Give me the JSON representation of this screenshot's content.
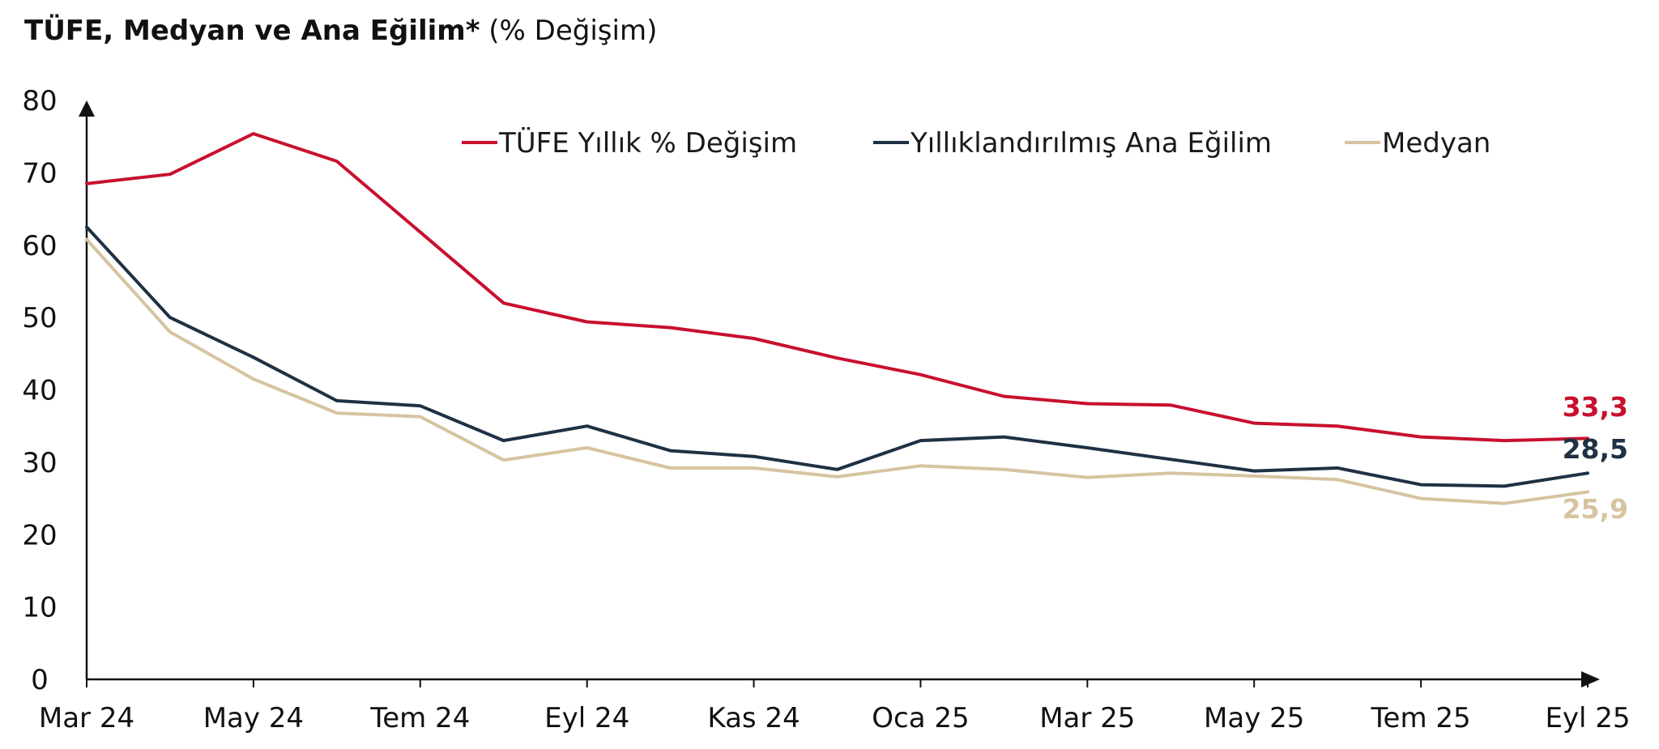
{
  "title": {
    "bold": "TÜFE, Medyan ve Ana Eğilim*",
    "sub": "(% Değişim)"
  },
  "colors": {
    "tufe": "#c8102e",
    "ana": "#1f3144",
    "medyan": "#d6c4a0",
    "axis": "#111111"
  },
  "chart_data": {
    "type": "line",
    "title": "TÜFE, Medyan ve Ana Eğilim* (% Değişim)",
    "xlabel": "",
    "ylabel": "",
    "ylim": [
      0,
      80
    ],
    "yticks": [
      "0",
      "10",
      "20",
      "30",
      "40",
      "50",
      "60",
      "70",
      "80"
    ],
    "x": [
      "Mar 24",
      "Nis 24",
      "May 24",
      "Haz 24",
      "Tem 24",
      "Ağu 24",
      "Eyl 24",
      "Eki 24",
      "Kas 24",
      "Ara 24",
      "Oca 25",
      "Şub 25",
      "Mar 25",
      "Nis 25",
      "May 25",
      "Haz 25",
      "Tem 25",
      "Ağu 25",
      "Eyl 25"
    ],
    "xtick_labels": [
      "Mar 24",
      "",
      "May 24",
      "",
      "Tem 24",
      "",
      "Eyl 24",
      "",
      "Kas 24",
      "",
      "Oca 25",
      "",
      "Mar 25",
      "",
      "May 25",
      "",
      "Tem 25",
      "",
      "Eyl 25"
    ],
    "legend_position": "top",
    "series": [
      {
        "key": "tufe",
        "name": "TÜFE Yıllık % Değişim",
        "values": [
          68.5,
          69.8,
          75.4,
          71.6,
          61.8,
          52.0,
          49.4,
          48.6,
          47.1,
          44.4,
          42.1,
          39.1,
          38.1,
          37.9,
          35.4,
          35.0,
          33.5,
          33.0,
          33.3
        ],
        "end_label": "33,3"
      },
      {
        "key": "ana",
        "name": "Yıllıklandırılmış Ana Eğilim",
        "values": [
          62.5,
          50.0,
          44.5,
          38.5,
          37.8,
          33.0,
          35.0,
          31.6,
          30.8,
          29.0,
          33.0,
          33.5,
          32.0,
          30.4,
          28.8,
          29.2,
          26.9,
          26.7,
          28.5
        ],
        "end_label": "28,5"
      },
      {
        "key": "medyan",
        "name": "Medyan",
        "values": [
          60.8,
          48.0,
          41.5,
          36.8,
          36.3,
          30.3,
          32.0,
          29.2,
          29.2,
          28.0,
          29.5,
          29.0,
          27.9,
          28.5,
          28.1,
          27.6,
          25.0,
          24.3,
          25.9
        ],
        "end_label": "25,9"
      }
    ]
  }
}
